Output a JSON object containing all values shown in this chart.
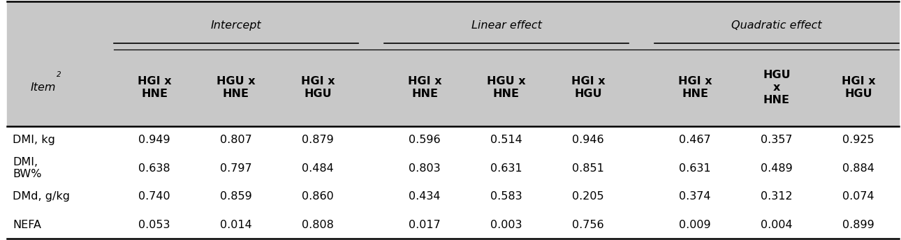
{
  "header_top": [
    "Intercept",
    "Linear effect",
    "Quadratic effect"
  ],
  "header_sub": [
    "HGI x\nHNE",
    "HGU x\nHNE",
    "HGI x\nHGU",
    "HGI x\nHNE",
    "HGU x\nHNE",
    "HGI x\nHGU",
    "HGI x\nHNE",
    "HGU\nx\nHNE",
    "HGI x\nHGU"
  ],
  "row_labels": [
    "DMI, kg",
    "DMI,\nBW%",
    "DMd, g/kg",
    "NEFA"
  ],
  "data": [
    [
      0.949,
      0.807,
      0.879,
      0.596,
      0.514,
      0.946,
      0.467,
      0.357,
      0.925
    ],
    [
      0.638,
      0.797,
      0.484,
      0.803,
      0.631,
      0.851,
      0.631,
      0.489,
      0.884
    ],
    [
      0.74,
      0.859,
      0.86,
      0.434,
      0.583,
      0.205,
      0.374,
      0.312,
      0.074
    ],
    [
      0.053,
      0.014,
      0.808,
      0.017,
      0.003,
      0.756,
      0.009,
      0.004,
      0.899
    ]
  ],
  "header_bg": "#c8c8c8",
  "gap_bg": "#b8b8b8",
  "font_size": 11.5,
  "header_font_size": 11.5
}
